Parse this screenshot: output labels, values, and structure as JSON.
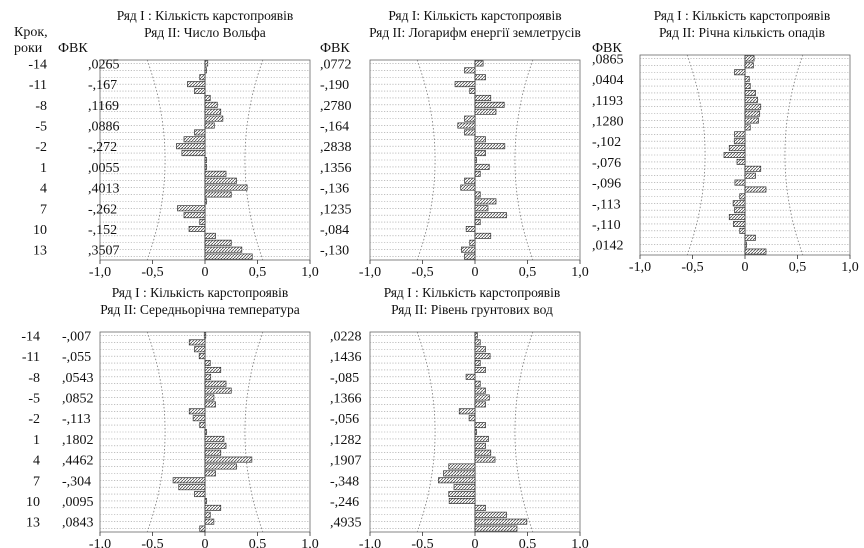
{
  "chart_data": [
    {
      "type": "bar",
      "title": "Ряд I : Кількість карстопроявів",
      "subtitle": "Ряд II: Число Вольфа",
      "lag_header": [
        "Крок,",
        "роки"
      ],
      "ccf_header": "ФВК",
      "lag_labels": [
        "-14",
        "-11",
        "-8",
        "-5",
        "-2",
        "1",
        "4",
        "7",
        "10",
        "13"
      ],
      "ccf_labels": [
        ",0265",
        "-,167",
        ",1169",
        ",0886",
        "-,272",
        ",0055",
        ",4013",
        "-,262",
        "-,152",
        ",3507"
      ],
      "x_ticks": [
        "-1,0",
        "-0,5",
        "0",
        "0,5",
        "1,0"
      ],
      "xlim": [
        -1,
        1
      ],
      "lags": [
        -14,
        -13,
        -12,
        -11,
        -10,
        -9,
        -8,
        -7,
        -6,
        -5,
        -4,
        -3,
        -2,
        -1,
        0,
        1,
        2,
        3,
        4,
        5,
        6,
        7,
        8,
        9,
        10,
        11,
        12,
        13,
        14
      ],
      "values": [
        0.0265,
        0.0,
        -0.05,
        -0.167,
        -0.1,
        0.05,
        0.1169,
        0.15,
        0.17,
        0.0886,
        -0.1,
        -0.2,
        -0.272,
        -0.22,
        0.0,
        0.0055,
        0.2,
        0.3,
        0.4013,
        0.25,
        0.0,
        -0.262,
        -0.2,
        -0.05,
        -0.152,
        0.1,
        0.25,
        0.3507,
        0.45
      ],
      "conf_limit": [
        0.38,
        0.55
      ]
    },
    {
      "type": "bar",
      "title": "Ряд I: Кількість карстопроявів",
      "subtitle": "Ряд II: Логарифм енергії землетрусів",
      "lag_header": [],
      "ccf_header": "ФВК",
      "lag_labels": [],
      "ccf_labels": [
        ",0772",
        "-,190",
        ",2780",
        "-,164",
        ",2838",
        ",1356",
        "-,136",
        ",1235",
        "-,084",
        "-,130"
      ],
      "x_ticks": [
        "-1,0",
        "-0,5",
        "0",
        "0,5",
        "1,0"
      ],
      "xlim": [
        -1,
        1
      ],
      "lags": [
        -14,
        -13,
        -12,
        -11,
        -10,
        -9,
        -8,
        -7,
        -6,
        -5,
        -4,
        -3,
        -2,
        -1,
        0,
        1,
        2,
        3,
        4,
        5,
        6,
        7,
        8,
        9,
        10,
        11,
        12,
        13,
        14
      ],
      "values": [
        0.0772,
        -0.1,
        0.1,
        -0.19,
        -0.05,
        0.15,
        0.278,
        0.2,
        -0.1,
        -0.164,
        -0.1,
        0.1,
        0.2838,
        0.1,
        0.0,
        0.1356,
        0.05,
        -0.1,
        -0.136,
        0.05,
        0.2,
        0.1235,
        0.3,
        0.05,
        -0.084,
        0.15,
        -0.05,
        -0.13,
        -0.1
      ],
      "conf_limit": [
        0.38,
        0.55
      ]
    },
    {
      "type": "bar",
      "title": "Ряд I : Кількість карстопроявів",
      "subtitle": "Ряд II: Річна кількість опадів",
      "lag_header": [],
      "ccf_header": "ФВК",
      "lag_labels": [],
      "ccf_labels": [
        ",0865",
        ",0404",
        ",1193",
        ",1280",
        "-,102",
        "-,076",
        "-,096",
        "-,113",
        "-,110",
        ",0142"
      ],
      "x_ticks": [
        "-1,0",
        "-0,5",
        "0",
        "0,5",
        "1,0"
      ],
      "xlim": [
        -1,
        1
      ],
      "lags": [
        -14,
        -13,
        -12,
        -11,
        -10,
        -9,
        -8,
        -7,
        -6,
        -5,
        -4,
        -3,
        -2,
        -1,
        0,
        1,
        2,
        3,
        4,
        5,
        6,
        7,
        8,
        9,
        10,
        11,
        12,
        13,
        14
      ],
      "values": [
        0.0865,
        0.08,
        -0.1,
        0.0404,
        0.05,
        0.1,
        0.1193,
        0.15,
        0.14,
        0.128,
        0.05,
        -0.1,
        -0.102,
        -0.15,
        -0.2,
        -0.076,
        0.15,
        0.1,
        -0.096,
        0.2,
        -0.05,
        -0.113,
        -0.1,
        -0.15,
        -0.11,
        -0.05,
        0.1,
        0.0142,
        0.2
      ],
      "conf_limit": [
        0.38,
        0.55
      ]
    },
    {
      "type": "bar",
      "title": "Ряд I : Кількість карстопроявів",
      "subtitle": "Ряд II: Середньорічна температура",
      "lag_header": [],
      "ccf_header": "",
      "lag_labels": [
        "-14",
        "-11",
        "-8",
        "-5",
        "-2",
        "1",
        "4",
        "7",
        "10",
        "13"
      ],
      "ccf_labels": [
        "-,007",
        "-,055",
        ",0543",
        ",0852",
        "-,113",
        ",1802",
        ",4462",
        "-,304",
        ",0095",
        ",0843"
      ],
      "x_ticks": [
        "-1,0",
        "-0,5",
        "0",
        "0,5",
        "1,0"
      ],
      "xlim": [
        -1,
        1
      ],
      "lags": [
        -14,
        -13,
        -12,
        -11,
        -10,
        -9,
        -8,
        -7,
        -6,
        -5,
        -4,
        -3,
        -2,
        -1,
        0,
        1,
        2,
        3,
        4,
        5,
        6,
        7,
        8,
        9,
        10,
        11,
        12,
        13,
        14
      ],
      "values": [
        -0.007,
        -0.15,
        -0.1,
        -0.055,
        0.05,
        0.15,
        0.0543,
        0.2,
        0.25,
        0.0852,
        0.1,
        -0.15,
        -0.113,
        -0.05,
        0.0,
        0.1802,
        0.2,
        0.15,
        0.4462,
        0.3,
        0.1,
        -0.304,
        -0.25,
        -0.1,
        0.0095,
        0.15,
        0.05,
        0.0843,
        -0.05
      ],
      "conf_limit": [
        0.38,
        0.55
      ]
    },
    {
      "type": "bar",
      "title": "Ряд I : Кількість карстопроявів",
      "subtitle": "Ряд II: Рівень грунтових вод",
      "lag_header": [],
      "ccf_header": "",
      "lag_labels": [],
      "ccf_labels": [
        ",0228",
        ",1436",
        "-,085",
        ",1366",
        "-,056",
        ",1282",
        ",1907",
        "-,348",
        "-,246",
        ",4935"
      ],
      "x_ticks": [
        "-1,0",
        "-0,5",
        "0",
        "0,5",
        "1,0"
      ],
      "xlim": [
        -1,
        1
      ],
      "lags": [
        -14,
        -13,
        -12,
        -11,
        -10,
        -9,
        -8,
        -7,
        -6,
        -5,
        -4,
        -3,
        -2,
        -1,
        0,
        1,
        2,
        3,
        4,
        5,
        6,
        7,
        8,
        9,
        10,
        11,
        12,
        13,
        14
      ],
      "values": [
        0.0228,
        0.05,
        0.1,
        0.1436,
        0.05,
        0.1,
        -0.085,
        0.05,
        0.1,
        0.1366,
        0.1,
        -0.15,
        -0.056,
        0.1,
        0.0,
        0.1282,
        0.1,
        0.15,
        0.1907,
        -0.25,
        -0.3,
        -0.348,
        -0.2,
        -0.25,
        -0.246,
        0.1,
        0.3,
        0.4935,
        0.4
      ],
      "conf_limit": [
        0.38,
        0.55
      ]
    }
  ]
}
